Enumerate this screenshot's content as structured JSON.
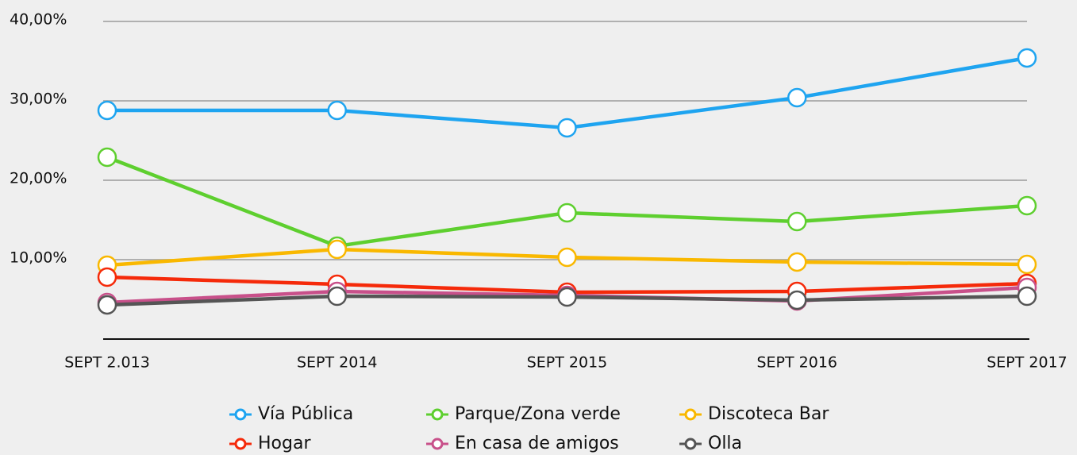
{
  "chart_data": {
    "type": "line",
    "categories": [
      "SEPT 2.013",
      "SEPT 2014",
      "SEPT 2015",
      "SEPT 2016",
      "SEPT 2017"
    ],
    "series": [
      {
        "name": "Vía Pública",
        "color": "#1ea4f0",
        "values": [
          28.8,
          28.8,
          26.6,
          30.4,
          35.4
        ]
      },
      {
        "name": "Parque/Zona verde",
        "color": "#5ecf2f",
        "values": [
          22.9,
          11.7,
          15.9,
          14.8,
          16.8
        ]
      },
      {
        "name": "Discoteca Bar",
        "color": "#f9b800",
        "values": [
          9.3,
          11.3,
          10.3,
          9.7,
          9.4
        ]
      },
      {
        "name": "Hogar",
        "color": "#f52a0a",
        "values": [
          7.8,
          6.9,
          5.9,
          6.0,
          7.0
        ]
      },
      {
        "name": "En casa de amigos",
        "color": "#c8508a",
        "values": [
          4.6,
          6.0,
          5.5,
          4.8,
          6.5
        ]
      },
      {
        "name": "Olla",
        "color": "#555555",
        "values": [
          4.3,
          5.4,
          5.3,
          4.9,
          5.4
        ]
      }
    ],
    "ylim": [
      0,
      40
    ],
    "yticks": [
      {
        "value": 10,
        "label": "10,00%"
      },
      {
        "value": 20,
        "label": "20,00%"
      },
      {
        "value": 30,
        "label": "30,00%"
      },
      {
        "value": 40,
        "label": "40,00%"
      }
    ],
    "grid": true,
    "legend": "bottom"
  }
}
